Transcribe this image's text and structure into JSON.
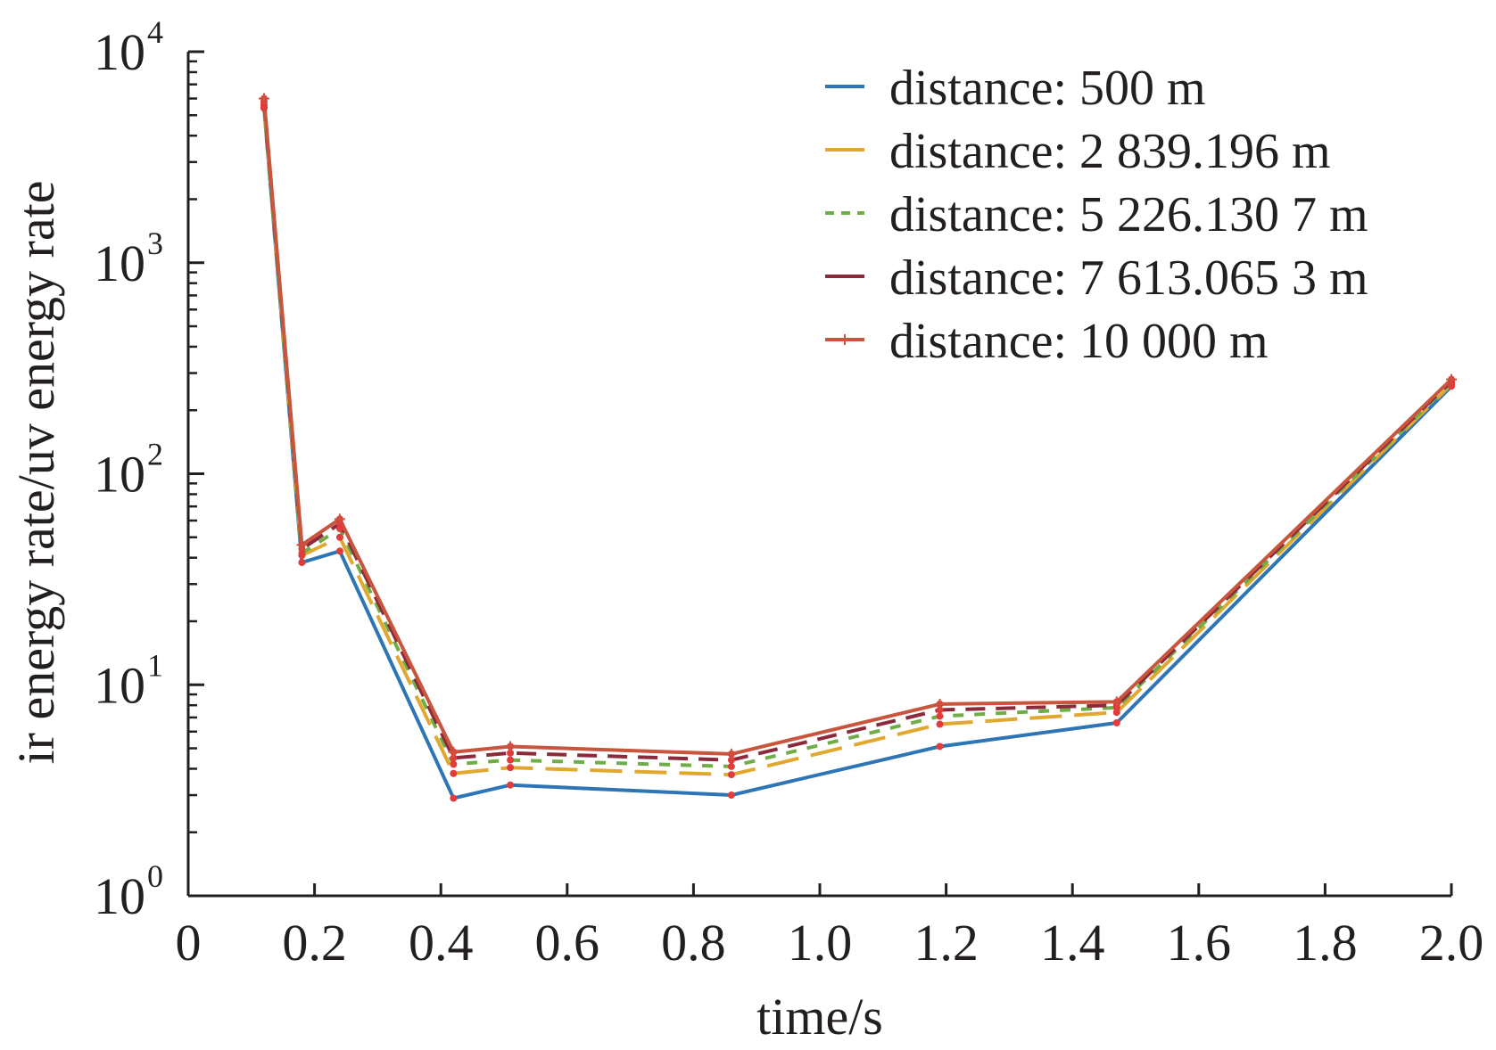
{
  "chart_data": {
    "type": "line",
    "title": "",
    "xlabel": "time/s",
    "ylabel": "ir energy rate/uv energy rate",
    "xlim": [
      0,
      2.0
    ],
    "ylim": [
      1,
      10000
    ],
    "yscale": "log",
    "x_ticks": [
      "0",
      "0.2",
      "0.4",
      "0.6",
      "0.8",
      "1.0",
      "1.2",
      "1.4",
      "1.6",
      "1.8",
      "2.0"
    ],
    "y_ticks": [
      {
        "base": "10",
        "exp": "0"
      },
      {
        "base": "10",
        "exp": "1"
      },
      {
        "base": "10",
        "exp": "2"
      },
      {
        "base": "10",
        "exp": "3"
      },
      {
        "base": "10",
        "exp": "4"
      }
    ],
    "grid": false,
    "legend_position": "top-right",
    "x": [
      0.12,
      0.18,
      0.24,
      0.42,
      0.51,
      0.86,
      1.19,
      1.47,
      2.0
    ],
    "series": [
      {
        "name": "distance: 500 m",
        "color": "#2e75b6",
        "dash": "solid",
        "marker": "none",
        "values": [
          5400,
          38,
          43,
          2.9,
          3.35,
          3.0,
          5.1,
          6.6,
          260
        ]
      },
      {
        "name": "distance: 2 839.196 m",
        "color": "#e0a82e",
        "dash": "long",
        "marker": "none",
        "values": [
          5500,
          41,
          50,
          3.8,
          4.05,
          3.75,
          6.5,
          7.4,
          265
        ]
      },
      {
        "name": "distance: 5 226.130 7 m",
        "color": "#70ad47",
        "dash": "short",
        "marker": "none",
        "values": [
          5600,
          42,
          55,
          4.2,
          4.4,
          4.1,
          7.1,
          7.8,
          270
        ]
      },
      {
        "name": "distance: 7 613.065 3 m",
        "color": "#8b2a3a",
        "dash": "medium",
        "marker": "none",
        "values": [
          5800,
          44,
          58,
          4.5,
          4.75,
          4.4,
          7.6,
          8.0,
          275
        ]
      },
      {
        "name": "distance: 10 000 m",
        "color": "#c8553d",
        "dash": "solid",
        "marker": "plus",
        "values": [
          6000,
          46,
          61,
          4.8,
          5.1,
          4.7,
          8.1,
          8.3,
          280
        ]
      }
    ]
  }
}
